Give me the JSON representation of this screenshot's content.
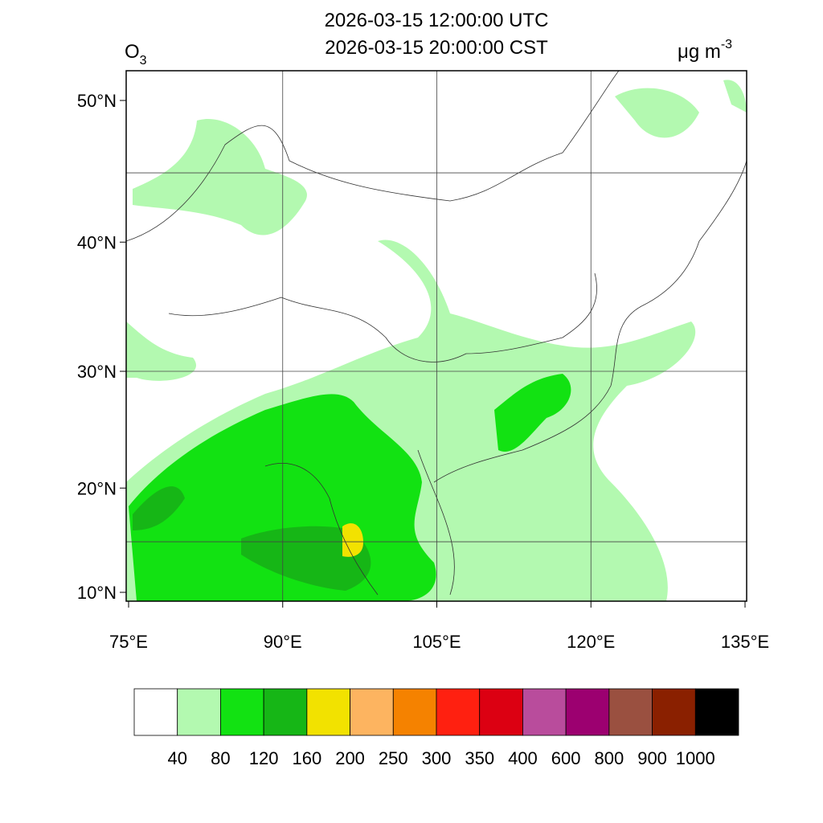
{
  "header": {
    "time_utc": "2026-03-15 12:00:00 UTC",
    "time_local": "2026-03-15 20:00:00 CST",
    "variable": {
      "name": "O",
      "subscript": "3"
    },
    "units": {
      "text": "μg m",
      "superscript": "-3"
    }
  },
  "map": {
    "lat_ticks": [
      {
        "value": 10,
        "label": "10°N"
      },
      {
        "value": 20,
        "label": "20°N"
      },
      {
        "value": 30,
        "label": "30°N"
      },
      {
        "value": 40,
        "label": "40°N"
      },
      {
        "value": 50,
        "label": "50°N"
      }
    ],
    "lon_ticks": [
      {
        "value": 75,
        "label": "75°E"
      },
      {
        "value": 90,
        "label": "90°E"
      },
      {
        "value": 105,
        "label": "105°E"
      },
      {
        "value": 120,
        "label": "120°E"
      },
      {
        "value": 135,
        "label": "135°E"
      }
    ]
  },
  "colorbar": {
    "levels": [
      40,
      80,
      120,
      160,
      200,
      250,
      300,
      350,
      400,
      600,
      800,
      900,
      1000
    ],
    "colors": [
      "#ffffff",
      "#b3f9b0",
      "#12e212",
      "#16b616",
      "#f2e200",
      "#fdb460",
      "#f58200",
      "#ff2010",
      "#dc0012",
      "#b94c9c",
      "#9c0070",
      "#9a5040",
      "#8a2000",
      "#000000"
    ]
  }
}
